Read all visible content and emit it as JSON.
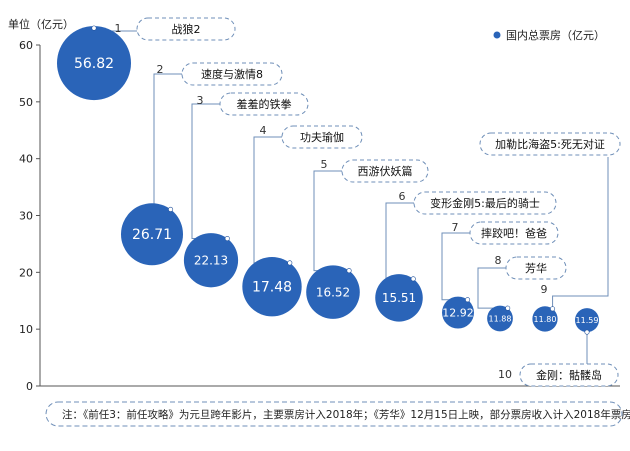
{
  "chart_data": {
    "type": "scatter",
    "yaxis_label": "单位（亿元）",
    "ylim": [
      0,
      60
    ],
    "yticks": [
      0,
      10,
      20,
      30,
      40,
      50,
      60
    ],
    "legend": {
      "label": "国内总票房（亿元）",
      "color": "#2a64b8",
      "position": "top-right"
    },
    "colors": {
      "bubble": "#2a64b8",
      "bubble_dark": "#1f4f9a",
      "dash": "#6f8fb8",
      "axis": "#555555"
    },
    "series": [
      {
        "name": "国内总票房（亿元）",
        "points": [
          {
            "rank": "1",
            "title": "战狼2",
            "value": 56.82,
            "value_label": "56.82"
          },
          {
            "rank": "2",
            "title": "速度与激情8",
            "value": 26.71,
            "value_label": "26.71"
          },
          {
            "rank": "3",
            "title": "羞羞的铁拳",
            "value": 22.13,
            "value_label": "22.13"
          },
          {
            "rank": "4",
            "title": "功夫瑜伽",
            "value": 17.48,
            "value_label": "17.48"
          },
          {
            "rank": "5",
            "title": "西游伏妖篇",
            "value": 16.52,
            "value_label": "16.52"
          },
          {
            "rank": "6",
            "title": "变形金刚5:最后的骑士",
            "value": 15.51,
            "value_label": "15.51"
          },
          {
            "rank": "7",
            "title": "摔跤吧！爸爸",
            "value": 12.92,
            "value_label": "12.92"
          },
          {
            "rank": "8",
            "title": "芳华",
            "value": 11.88,
            "value_label": "11.88"
          },
          {
            "rank": "9",
            "title": "加勒比海盗5:死无对证",
            "value": 11.8,
            "value_label": "11.80"
          },
          {
            "rank": "10",
            "title": "金刚：骷髅岛",
            "value": 11.59,
            "value_label": "11.59"
          }
        ]
      }
    ],
    "note": "注：《前任3：前任攻略》为元旦跨年影片，主要票房计入2018年；《芳华》12月15日上映，部分票房收入计入2018年票房。"
  }
}
